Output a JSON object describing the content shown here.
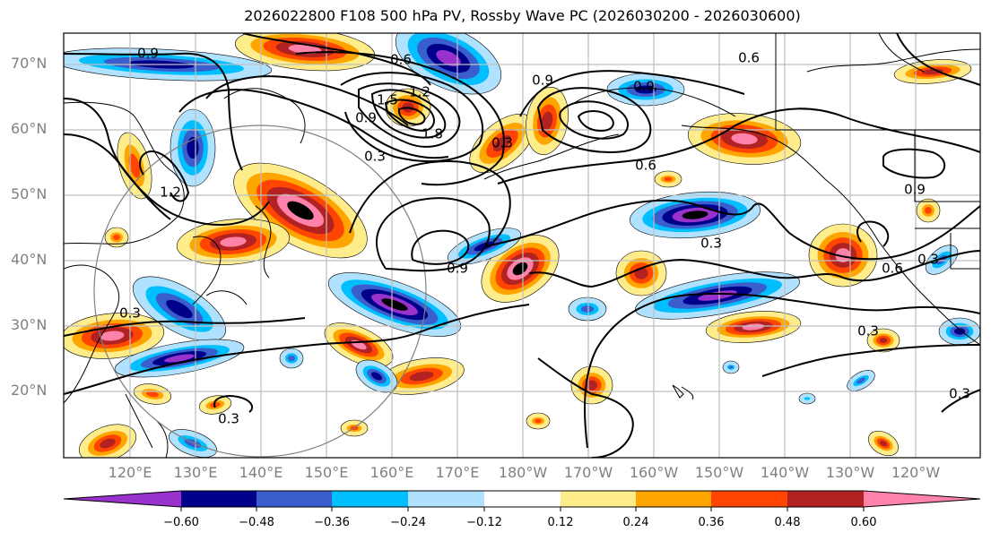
{
  "title": "2026022800 F108 500 hPa PV, Rossby Wave PC (2026030200 - 2026030600)",
  "map": {
    "projection": "PlateCarree",
    "lon_range": [
      "~110°E",
      "~110°W"
    ],
    "lat_range": [
      "~10°N",
      "~75°N"
    ],
    "lat_labels": [
      "70°N",
      "60°N",
      "50°N",
      "40°N",
      "30°N",
      "20°N"
    ],
    "lon_labels": [
      "120°E",
      "130°E",
      "140°E",
      "150°E",
      "160°E",
      "170°E",
      "180°W",
      "170°W",
      "160°W",
      "150°W",
      "140°W",
      "130°W",
      "120°W"
    ],
    "gridline_color": "#bfbfbf",
    "contour_color": "#000000",
    "contour_labels": [
      "0.9",
      "0.6",
      "0.9",
      "1.5",
      "1.2",
      "1.8",
      "0.9",
      "0.3",
      "0.3",
      "0.9",
      "0.6",
      "0.6",
      "0.3",
      "0.9",
      "1.2",
      "0.3",
      "0.3",
      "0.9",
      "0.3",
      "0.6",
      "0.3",
      "0.3",
      "0.3",
      "0.3"
    ]
  },
  "colorbar": {
    "extend": "both",
    "ticks": [
      "−0.60",
      "−0.48",
      "−0.36",
      "−0.24",
      "−0.12",
      "0.12",
      "0.24",
      "0.36",
      "0.48",
      "0.60"
    ],
    "levels": [
      {
        "range": "< -0.60",
        "color": "#9932cc"
      },
      {
        "range": "-0.60 to -0.48",
        "color": "#00008b"
      },
      {
        "range": "-0.48 to -0.36",
        "color": "#3a5fcd"
      },
      {
        "range": "-0.36 to -0.24",
        "color": "#00bfff"
      },
      {
        "range": "-0.24 to -0.12",
        "color": "#b0e2ff"
      },
      {
        "range": "-0.12 to 0.12",
        "color": "#ffffff"
      },
      {
        "range": "0.12 to 0.24",
        "color": "#ffec8b"
      },
      {
        "range": "0.24 to 0.36",
        "color": "#ffa500"
      },
      {
        "range": "0.36 to 0.48",
        "color": "#ff4500"
      },
      {
        "range": "0.48 to 0.60",
        "color": "#b22222"
      },
      {
        "range": "> 0.60",
        "color": "#ff82ab"
      }
    ]
  }
}
